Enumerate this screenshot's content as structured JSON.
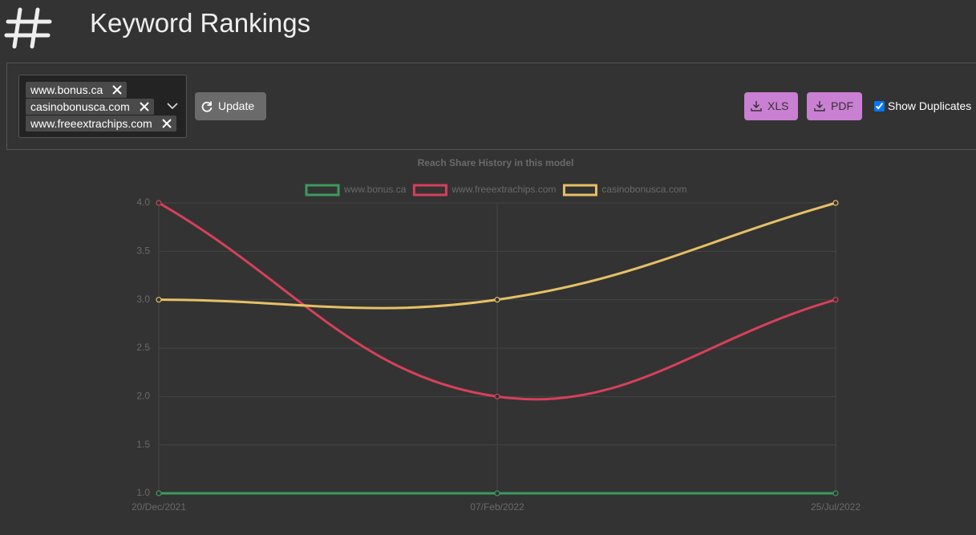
{
  "header": {
    "title": "Keyword Rankings"
  },
  "toolbar": {
    "tags": [
      "www.bonus.ca",
      "casinobonusca.com",
      "www.freeextrachips.com"
    ],
    "update": "Update",
    "xls": "XLS",
    "pdf": "PDF",
    "show_duplicates": {
      "label": "Show Duplicates",
      "checked": true
    }
  },
  "chart_data": {
    "type": "line",
    "title": "Reach Share History in this model",
    "categories": [
      "20/Dec/2021",
      "07/Feb/2022",
      "25/Jul/2022"
    ],
    "series": [
      {
        "name": "www.bonus.ca",
        "color": "#3d9a5e",
        "values": [
          1,
          1,
          1
        ]
      },
      {
        "name": "www.freeextrachips.com",
        "color": "#d7405a",
        "values": [
          4,
          2,
          3
        ]
      },
      {
        "name": "casinobonusca.com",
        "color": "#e6c066",
        "values": [
          3,
          3,
          4
        ]
      }
    ],
    "ylim": [
      1,
      4
    ],
    "yticks": [
      {
        "value": 1,
        "label": "1.0"
      },
      1.5,
      {
        "value": 2,
        "label": "2.0"
      },
      2.5,
      {
        "value": 3,
        "label": "3.0"
      },
      3.5,
      {
        "value": 4,
        "label": "4.0"
      }
    ],
    "grid": true
  }
}
